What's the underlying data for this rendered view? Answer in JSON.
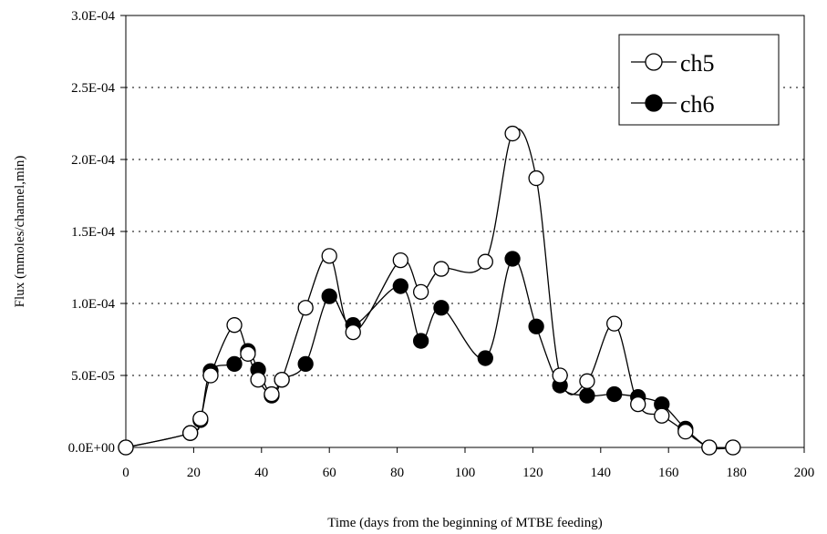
{
  "chart_data": {
    "type": "line",
    "xlabel": "Time (days from the beginning of MTBE feeding)",
    "ylabel": "Flux (mmoles/channel,min)",
    "xlim": [
      0,
      200
    ],
    "ylim": [
      0,
      0.0003
    ],
    "x_ticks": [
      "0",
      "20",
      "40",
      "60",
      "80",
      "100",
      "120",
      "140",
      "160",
      "180",
      "200"
    ],
    "y_ticks": [
      "0.0E+00",
      "5.0E-05",
      "1.0E-04",
      "1.5E-04",
      "2.0E-04",
      "2.5E-04",
      "3.0E-04"
    ],
    "grid": "horizontal dotted",
    "legend_position": "top-right",
    "series": [
      {
        "name": "ch5",
        "marker": "open-circle",
        "x": [
          0,
          19,
          22,
          25,
          32,
          36,
          39,
          43,
          46,
          53,
          60,
          67,
          81,
          87,
          93,
          106,
          114,
          121,
          128,
          136,
          144,
          151,
          158,
          165,
          172,
          179
        ],
        "y": [
          0,
          1e-05,
          2e-05,
          5e-05,
          8.5e-05,
          6.5e-05,
          4.7e-05,
          3.7e-05,
          4.7e-05,
          9.7e-05,
          0.000133,
          8e-05,
          0.00013,
          0.000108,
          0.000124,
          0.000129,
          0.000218,
          0.000187,
          5e-05,
          4.6e-05,
          8.6e-05,
          3e-05,
          2.2e-05,
          1.1e-05,
          0,
          0
        ]
      },
      {
        "name": "ch6",
        "marker": "filled-circle",
        "x": [
          0,
          19,
          22,
          25,
          32,
          36,
          39,
          43,
          46,
          53,
          60,
          67,
          81,
          87,
          93,
          106,
          114,
          121,
          128,
          136,
          144,
          151,
          158,
          165,
          172,
          179
        ],
        "y": [
          0,
          1e-05,
          1.9e-05,
          5.3e-05,
          5.8e-05,
          6.7e-05,
          5.4e-05,
          3.6e-05,
          4.7e-05,
          5.8e-05,
          0.000105,
          8.5e-05,
          0.000112,
          7.4e-05,
          9.7e-05,
          6.2e-05,
          0.000131,
          8.4e-05,
          4.3e-05,
          3.6e-05,
          3.7e-05,
          3.5e-05,
          3e-05,
          1.3e-05,
          0,
          0
        ]
      }
    ]
  }
}
